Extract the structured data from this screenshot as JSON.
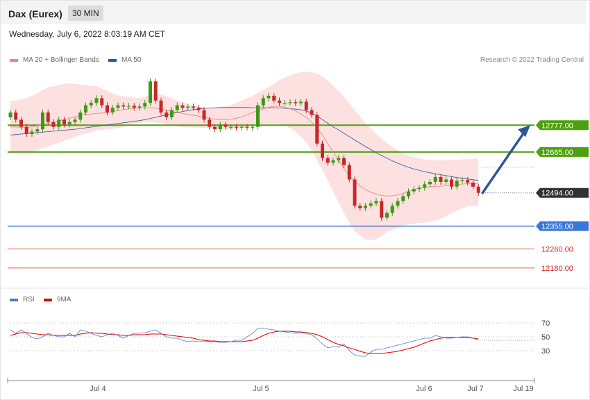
{
  "header": {
    "title": "Dax (Eurex)",
    "timeframe": "30 MIN"
  },
  "timestamp": "Wednesday, July 6, 2022 8:03:19 AM CET",
  "legend": {
    "ma20_label": "MA 20 + Bollinger Bands",
    "ma20_color": "#f08080",
    "ma50_label": "MA 50",
    "ma50_color": "#2f5597",
    "credit": "Research © 2022 Trading Central"
  },
  "rsi_legend": {
    "rsi_label": "RSI",
    "rsi_color": "#4a7bd8",
    "ma9_label": "9MA",
    "ma9_color": "#e00000"
  },
  "colors": {
    "up": "#3a9a12",
    "down": "#c62828",
    "bb_fill": "#fde0e0",
    "target": "#2f5597"
  },
  "chart_data": [
    {
      "type": "candlestick",
      "title": "Dax (Eurex)",
      "timeframe": "30 MIN",
      "ylim": [
        12110,
        13010
      ],
      "x_tick_labels": [
        "Jul 4",
        "Jul 5",
        "Jul 6",
        "Jul 7",
        "Jul 19"
      ],
      "levels": [
        {
          "value": 12777,
          "label": "12777.00",
          "kind": "resistance",
          "color": "#4ea10e"
        },
        {
          "value": 12665,
          "label": "12665.00",
          "kind": "resistance",
          "color": "#4ea10e"
        },
        {
          "value": 12494,
          "label": "12494.00",
          "kind": "last",
          "color": "#333333"
        },
        {
          "value": 12355,
          "label": "12355.00",
          "kind": "pivot",
          "color": "#3a78d8"
        },
        {
          "value": 12260,
          "label": "12260.00",
          "kind": "support",
          "color": "#e06060"
        },
        {
          "value": 12180,
          "label": "12180.00",
          "kind": "support",
          "color": "#e06060"
        }
      ],
      "close": [
        12830,
        12800,
        12770,
        12740,
        12750,
        12760,
        12830,
        12790,
        12770,
        12800,
        12780,
        12790,
        12800,
        12830,
        12860,
        12870,
        12890,
        12860,
        12830,
        12850,
        12860,
        12855,
        12858,
        12850,
        12855,
        12870,
        12960,
        12880,
        12830,
        12810,
        12840,
        12860,
        12850,
        12855,
        12850,
        12840,
        12800,
        12770,
        12760,
        12780,
        12770,
        12770,
        12767,
        12770,
        12767,
        12770,
        12860,
        12890,
        12900,
        12880,
        12870,
        12870,
        12873,
        12869,
        12875,
        12840,
        12820,
        12700,
        12640,
        12620,
        12630,
        12640,
        12610,
        12550,
        12440,
        12430,
        12440,
        12450,
        12460,
        12390,
        12410,
        12440,
        12460,
        12480,
        12500,
        12510,
        12515,
        12530,
        12540,
        12560,
        12540,
        12550,
        12520,
        12545,
        12548,
        12537,
        12520,
        12494
      ],
      "ma20": [
        12770,
        12770,
        12768,
        12768,
        12770,
        12775,
        12780,
        12785,
        12790,
        12795,
        12800,
        12806,
        12812,
        12818,
        12822,
        12824,
        12826,
        12828,
        12830,
        12834,
        12838,
        12842,
        12845,
        12848,
        12850,
        12850,
        12850,
        12848,
        12845,
        12840,
        12835,
        12830,
        12826,
        12822,
        12819,
        12815,
        12810,
        12806,
        12802,
        12800,
        12800,
        12802,
        12806,
        12812,
        12820,
        12830,
        12838,
        12845,
        12852,
        12856,
        12856,
        12852,
        12845,
        12836,
        12824,
        12810,
        12790,
        12765,
        12735,
        12700,
        12665,
        12630,
        12596,
        12566,
        12542,
        12523,
        12508,
        12497,
        12490,
        12483,
        12481,
        12482,
        12486,
        12492,
        12500,
        12508,
        12514,
        12518,
        12520,
        12521,
        12522,
        12524,
        12526,
        12529,
        12531,
        12532,
        12532,
        12532
      ],
      "bb_upper": [
        12880,
        12880,
        12885,
        12890,
        12900,
        12910,
        12925,
        12935,
        12940,
        12945,
        12950,
        12952,
        12950,
        12947,
        12944,
        12942,
        12940,
        12930,
        12920,
        12910,
        12902,
        12898,
        12895,
        12892,
        12890,
        12895,
        12905,
        12910,
        12905,
        12898,
        12890,
        12880,
        12872,
        12865,
        12860,
        12855,
        12850,
        12848,
        12848,
        12850,
        12855,
        12860,
        12870,
        12880,
        12890,
        12900,
        12912,
        12924,
        12936,
        12950,
        12965,
        12975,
        12985,
        12993,
        12998,
        13000,
        12998,
        12993,
        12980,
        12962,
        12942,
        12920,
        12895,
        12868,
        12840,
        12812,
        12786,
        12762,
        12740,
        12720,
        12702,
        12686,
        12672,
        12660,
        12650,
        12643,
        12638,
        12634,
        12631,
        12630,
        12630,
        12631,
        12632,
        12633,
        12634,
        12635,
        12636,
        12637
      ],
      "bb_lower": [
        12670,
        12665,
        12665,
        12665,
        12668,
        12672,
        12680,
        12688,
        12696,
        12704,
        12712,
        12720,
        12728,
        12736,
        12742,
        12748,
        12755,
        12758,
        12760,
        12762,
        12765,
        12770,
        12776,
        12782,
        12786,
        12790,
        12790,
        12788,
        12784,
        12780,
        12775,
        12772,
        12770,
        12768,
        12767,
        12766,
        12766,
        12765,
        12764,
        12762,
        12760,
        12760,
        12762,
        12765,
        12770,
        12775,
        12778,
        12780,
        12782,
        12782,
        12780,
        12775,
        12765,
        12750,
        12730,
        12705,
        12672,
        12630,
        12590,
        12545,
        12500,
        12455,
        12410,
        12370,
        12335,
        12315,
        12300,
        12296,
        12300,
        12315,
        12330,
        12340,
        12348,
        12356,
        12362,
        12366,
        12368,
        12370,
        12372,
        12378,
        12386,
        12396,
        12408,
        12420,
        12430,
        12438,
        12440,
        12440
      ],
      "ma50": [
        12735,
        12738,
        12740,
        12742,
        12744,
        12746,
        12748,
        12750,
        12752,
        12754,
        12756,
        12758,
        12760,
        12763,
        12766,
        12769,
        12772,
        12775,
        12778,
        12781,
        12784,
        12787,
        12790,
        12793,
        12796,
        12800,
        12805,
        12810,
        12815,
        12820,
        12825,
        12830,
        12834,
        12838,
        12842,
        12845,
        12847,
        12849,
        12850,
        12851,
        12851,
        12851,
        12851,
        12851,
        12851,
        12850,
        12850,
        12850,
        12850,
        12850,
        12849,
        12848,
        12846,
        12844,
        12841,
        12836,
        12828,
        12815,
        12800,
        12785,
        12770,
        12757,
        12743,
        12729,
        12715,
        12701,
        12688,
        12675,
        12662,
        12650,
        12639,
        12628,
        12618,
        12609,
        12601,
        12594,
        12588,
        12583,
        12578,
        12574,
        12570,
        12566,
        12562,
        12558,
        12555,
        12552,
        12549,
        12546
      ],
      "projection": {
        "from": 12494,
        "to": 12777
      }
    },
    {
      "type": "line",
      "title": "RSI",
      "ylim": [
        0,
        100
      ],
      "y_ticks": [
        30,
        50,
        70
      ],
      "y_tick_labels": [
        "30",
        "50",
        "70"
      ],
      "series": [
        {
          "name": "RSI",
          "values": [
            60,
            55,
            60,
            55,
            49,
            47,
            50,
            55,
            52,
            50,
            50,
            55,
            50,
            60,
            58,
            55,
            52,
            50,
            53,
            55,
            52,
            48,
            52,
            55,
            55,
            56,
            58,
            60,
            55,
            50,
            48,
            48,
            45,
            43,
            44,
            43,
            44,
            43,
            43,
            42,
            42,
            43,
            45,
            45,
            50,
            55,
            62,
            62,
            61,
            60,
            58,
            57,
            56,
            55,
            56,
            55,
            53,
            47,
            40,
            34,
            36,
            35,
            40,
            30,
            24,
            22,
            22,
            28,
            32,
            32,
            34,
            36,
            38,
            40,
            42,
            44,
            46,
            48,
            48,
            52,
            50,
            48,
            48,
            49,
            50,
            50,
            48,
            45
          ]
        },
        {
          "name": "9MA",
          "values": [
            52,
            54,
            56,
            56,
            55,
            54,
            53,
            53,
            52,
            52,
            52,
            52,
            52,
            54,
            55,
            56,
            55,
            55,
            54,
            53,
            53,
            52,
            52,
            53,
            53,
            53,
            54,
            54,
            54,
            53,
            52,
            51,
            50,
            49,
            48,
            46,
            45,
            44,
            44,
            43,
            43,
            43,
            43,
            43,
            44,
            45,
            48,
            52,
            55,
            57,
            58,
            58,
            58,
            57,
            57,
            56,
            55,
            53,
            50,
            46,
            42,
            39,
            37,
            34,
            32,
            29,
            27,
            26,
            26,
            26,
            27,
            28,
            29,
            31,
            33,
            35,
            38,
            41,
            44,
            46,
            48,
            49,
            49,
            49,
            49,
            49,
            48,
            47
          ]
        }
      ]
    }
  ]
}
